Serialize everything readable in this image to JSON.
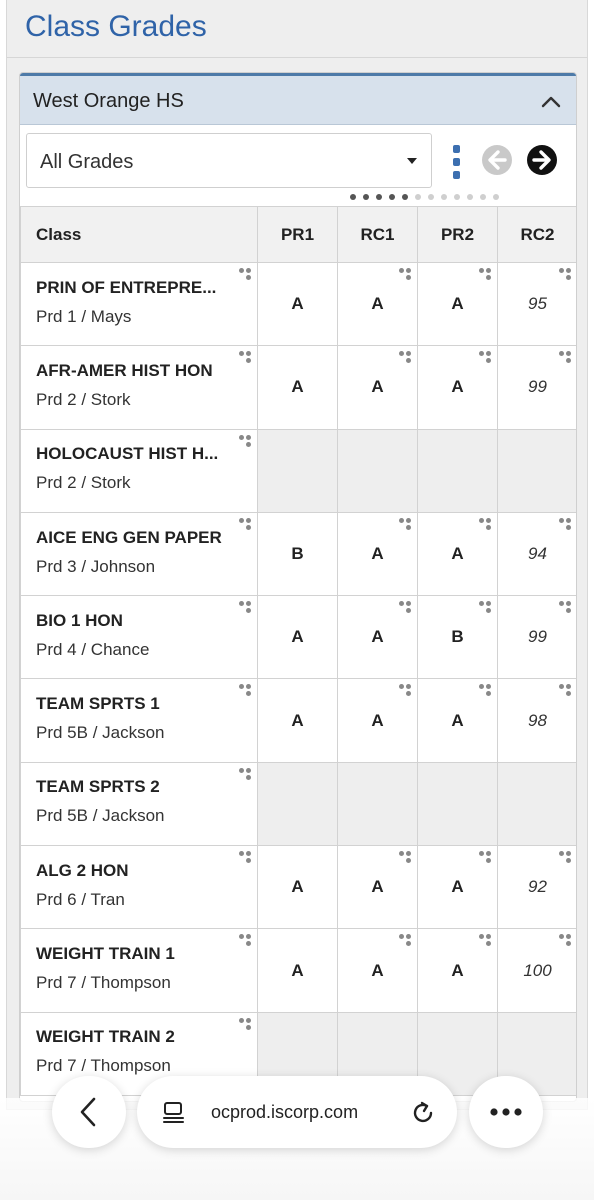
{
  "page": {
    "title": "Class Grades"
  },
  "school": {
    "name": "West Orange HS",
    "toggle_icon": "chevron-up-icon"
  },
  "filter": {
    "selected": "All Grades"
  },
  "pager": {
    "dot_count": 12,
    "active_dot": 5
  },
  "table": {
    "headers": [
      "Class",
      "PR1",
      "RC1",
      "PR2",
      "RC2"
    ],
    "rows": [
      {
        "name": "PRIN OF ENTREPRE...",
        "sub": "Prd 1 / Mays",
        "pr1": "A",
        "rc1": "A",
        "pr2": "A",
        "rc2": "95"
      },
      {
        "name": "AFR-AMER HIST HON",
        "sub": "Prd 2 / Stork",
        "pr1": "A",
        "rc1": "A",
        "pr2": "A",
        "rc2": "99"
      },
      {
        "name": "HOLOCAUST HIST H...",
        "sub": "Prd 2 / Stork",
        "pr1": "",
        "rc1": "",
        "pr2": "",
        "rc2": ""
      },
      {
        "name": "AICE ENG GEN PAPER",
        "sub": "Prd 3 / Johnson",
        "pr1": "B",
        "rc1": "A",
        "pr2": "A",
        "rc2": "94"
      },
      {
        "name": "BIO 1 HON",
        "sub": "Prd 4 / Chance",
        "pr1": "A",
        "rc1": "A",
        "pr2": "B",
        "rc2": "99"
      },
      {
        "name": "TEAM SPRTS 1",
        "sub": "Prd 5B / Jackson",
        "pr1": "A",
        "rc1": "A",
        "pr2": "A",
        "rc2": "98"
      },
      {
        "name": "TEAM SPRTS 2",
        "sub": "Prd 5B / Jackson",
        "pr1": "",
        "rc1": "",
        "pr2": "",
        "rc2": ""
      },
      {
        "name": "ALG 2 HON",
        "sub": "Prd 6 / Tran",
        "pr1": "A",
        "rc1": "A",
        "pr2": "A",
        "rc2": "92"
      },
      {
        "name": "WEIGHT TRAIN 1",
        "sub": "Prd 7 / Thompson",
        "pr1": "A",
        "rc1": "A",
        "pr2": "A",
        "rc2": "100"
      },
      {
        "name": "WEIGHT TRAIN 2",
        "sub": "Prd 7 / Thompson",
        "pr1": "",
        "rc1": "",
        "pr2": "",
        "rc2": ""
      }
    ]
  },
  "browser": {
    "url": "ocprod.iscorp.com"
  },
  "colors": {
    "title_blue": "#2f63a8",
    "school_bar": "#d7e1ec",
    "accent_blue": "#3c6fb0"
  }
}
